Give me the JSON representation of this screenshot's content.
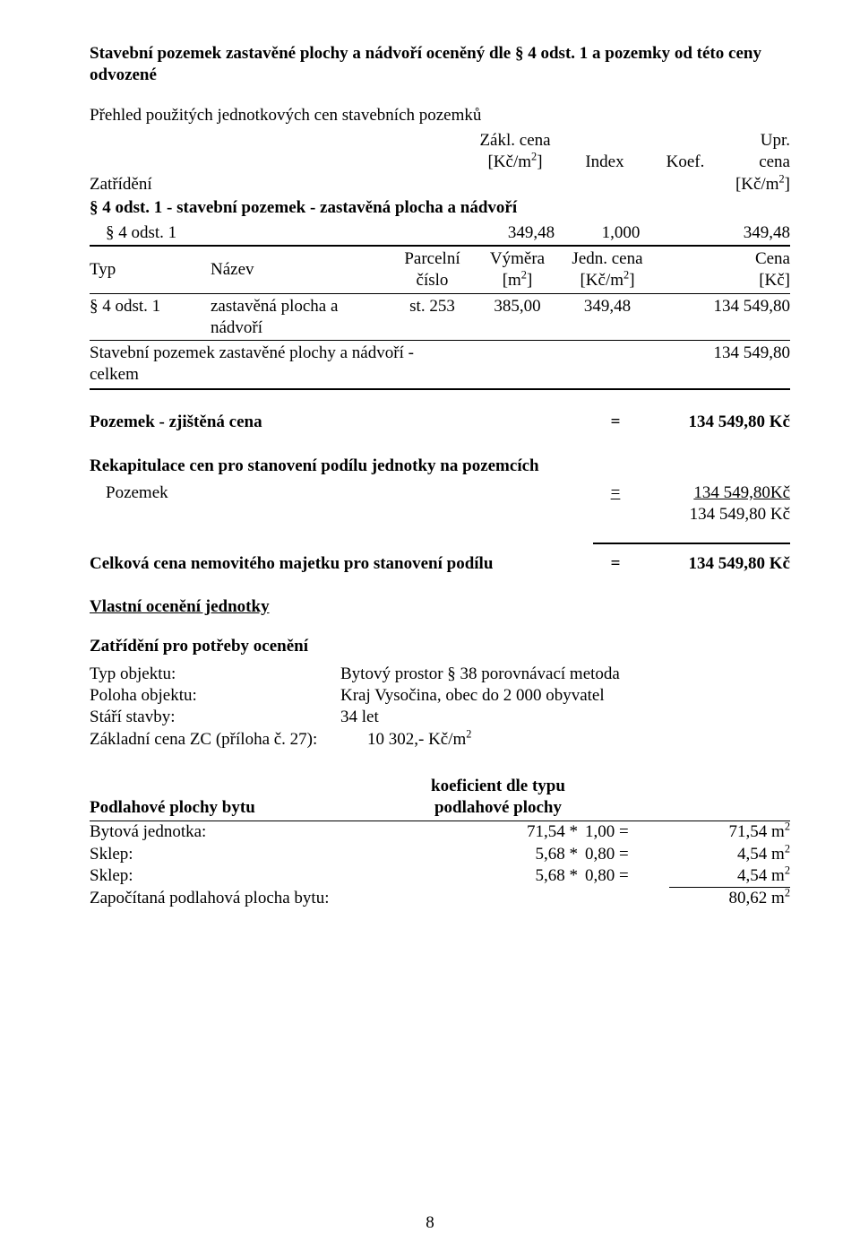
{
  "colors": {
    "text": "#000000",
    "bg": "#ffffff",
    "rule": "#000000"
  },
  "fontsizes": {
    "body": 19
  },
  "title1": "Stavební pozemek zastavěné plochy a nádvoří oceněný dle § 4 odst. 1 a pozemky od této ceny odvozené",
  "subtitle1": "Přehled použitých jednotkových cen stavebních pozemků",
  "table1": {
    "head": {
      "zatrideni": "Zatřídění",
      "zakl_l1": "Zákl. cena",
      "zakl_l2": "[Kč/m",
      "zakl_l2_sup": "2",
      "zakl_l2_end": "]",
      "index": "Index",
      "koef": "Koef.",
      "upr_l1": "Upr. cena",
      "upr_l2": "[Kč/m",
      "upr_l2_sup": "2",
      "upr_l2_end": "]"
    },
    "section": "§ 4 odst. 1 - stavební pozemek - zastavěná plocha a nádvoří",
    "row": {
      "col1": "§ 4 odst. 1",
      "zakl": "349,48",
      "index": "1,000",
      "upr": "349,48"
    }
  },
  "table2": {
    "head": {
      "typ": "Typ",
      "nazev": "Název",
      "parcelni_l1": "Parcelní",
      "parcelni_l2": "číslo",
      "vymera_l1": "Výměra",
      "vymera_l2": "[m",
      "vymera_l2_sup": "2",
      "vymera_l2_end": "]",
      "jedn_l1": "Jedn. cena",
      "jedn_l2": "[Kč/m",
      "jedn_l2_sup": "2",
      "jedn_l2_end": "]",
      "cena_l1": "Cena",
      "cena_l2": "[Kč]"
    },
    "row": {
      "typ": "§ 4 odst. 1",
      "nazev_l1": "zastavěná plocha a",
      "nazev_l2": "nádvoří",
      "cislo": "st. 253",
      "vymera": "385,00",
      "jedn": "349,48",
      "cena": "134 549,80"
    },
    "sum": {
      "label": "Stavební pozemek zastavěné plochy a nádvoří - celkem",
      "value": "134 549,80"
    }
  },
  "eq1": {
    "label": "Pozemek - zjištěná cena",
    "eq": "=",
    "value": "134 549,80 Kč"
  },
  "rekap": {
    "title": "Rekapitulace cen pro stanovení podílu jednotky na pozemcích",
    "row": {
      "label": "Pozemek",
      "eq": "=",
      "value": "134 549,80Kč"
    },
    "total": "134 549,80 Kč"
  },
  "eq2": {
    "label": "Celková cena nemovitého majetku pro stanovení podílu",
    "eq": "=",
    "value": "134 549,80 Kč"
  },
  "vlastni": "Vlastní ocenění jednotky",
  "zatrideni_title": "Zatřídění pro potřeby ocenění",
  "kv": [
    {
      "k": "Typ objektu:",
      "v": "Bytový prostor § 38 porovnávací metoda"
    },
    {
      "k": "Poloha objektu:",
      "v": "Kraj Vysočina, obec do 2 000 obyvatel"
    },
    {
      "k": "Stáří stavby:",
      "v": "34 let"
    }
  ],
  "zc": {
    "k": "Základní cena ZC (příloha č. 27):",
    "v_pre": "10 302,- Kč/m",
    "v_sup": "2"
  },
  "pp": {
    "title": "Podlahové plochy bytu",
    "koef_l1": "koeficient dle typu",
    "koef_l2": "podlahové plochy",
    "rows": [
      {
        "label": "Bytová jednotka:",
        "a": "71,54 *",
        "b": "1,00 =",
        "r_pre": "71,54 m",
        "r_sup": "2"
      },
      {
        "label": "Sklep:",
        "a": "5,68 *",
        "b": "0,80 =",
        "r_pre": "4,54 m",
        "r_sup": "2"
      },
      {
        "label": "Sklep:",
        "a": "5,68 *",
        "b": "0,80 =",
        "r_pre": "4,54 m",
        "r_sup": "2"
      }
    ],
    "total": {
      "label": "Započítaná podlahová plocha bytu:",
      "r_pre": "80,62 m",
      "r_sup": "2"
    }
  },
  "pagenum": "8"
}
